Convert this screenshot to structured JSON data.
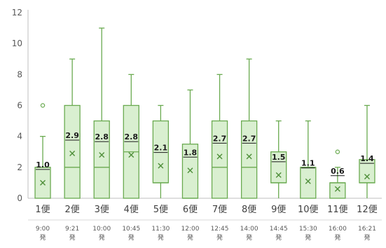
{
  "chart_data": {
    "type": "box",
    "title": "",
    "xlabel": "",
    "ylabel": "",
    "ylim": [
      0,
      12
    ],
    "yticks": [
      0,
      2,
      4,
      6,
      8,
      10,
      12
    ],
    "grid": false,
    "legend": "none",
    "colors": {
      "box_fill": "#d9efd0",
      "box_stroke": "#6aaa50",
      "whisker": "#6aaa50",
      "mean_marker": "#4f8f3a",
      "label_underline": "#1a1a1a",
      "axis": "#bfbfbf"
    },
    "categories": [
      {
        "label": "1便",
        "departure_time": "9:00",
        "departure_suffix": "発",
        "min": 0,
        "q1": 0,
        "median": 2,
        "q3": 2,
        "max": 4,
        "mean": 1.0,
        "mean_label": "1.0",
        "outliers": [
          6
        ]
      },
      {
        "label": "2便",
        "departure_time": "9:21",
        "departure_suffix": "発",
        "min": 0,
        "q1": 0,
        "median": 2,
        "q3": 6,
        "max": 9,
        "mean": 2.9,
        "mean_label": "2.9",
        "outliers": []
      },
      {
        "label": "3便",
        "departure_time": "10:00",
        "departure_suffix": "発",
        "min": 0,
        "q1": 0,
        "median": 2,
        "q3": 5,
        "max": 11,
        "mean": 2.8,
        "mean_label": "2.8",
        "outliers": []
      },
      {
        "label": "4便",
        "departure_time": "10:45",
        "departure_suffix": "発",
        "min": 0,
        "q1": 0,
        "median": 3,
        "q3": 6,
        "max": 8,
        "mean": 2.8,
        "mean_label": "2.8",
        "outliers": []
      },
      {
        "label": "5便",
        "departure_time": "11:30",
        "departure_suffix": "発",
        "min": 0,
        "q1": 1,
        "median": 1,
        "q3": 5,
        "max": 6,
        "mean": 2.1,
        "mean_label": "2.1",
        "outliers": []
      },
      {
        "label": "6便",
        "departure_time": "12:00",
        "departure_suffix": "発",
        "min": 0,
        "q1": 0,
        "median": 0,
        "q3": 3.5,
        "max": 7,
        "mean": 1.8,
        "mean_label": "1.8",
        "outliers": []
      },
      {
        "label": "7便",
        "departure_time": "12:45",
        "departure_suffix": "発",
        "min": 0,
        "q1": 0,
        "median": 2,
        "q3": 5,
        "max": 8,
        "mean": 2.7,
        "mean_label": "2.7",
        "outliers": []
      },
      {
        "label": "8便",
        "departure_time": "14:00",
        "departure_suffix": "発",
        "min": 0,
        "q1": 0,
        "median": 2,
        "q3": 5,
        "max": 9,
        "mean": 2.7,
        "mean_label": "2.7",
        "outliers": []
      },
      {
        "label": "9便",
        "departure_time": "14:45",
        "departure_suffix": "発",
        "min": 0,
        "q1": 1,
        "median": 1,
        "q3": 3,
        "max": 5,
        "mean": 1.5,
        "mean_label": "1.5",
        "outliers": []
      },
      {
        "label": "10便",
        "departure_time": "15:30",
        "departure_suffix": "発",
        "min": 0,
        "q1": 0,
        "median": 2,
        "q3": 2,
        "max": 5,
        "mean": 1.1,
        "mean_label": "1.1",
        "outliers": []
      },
      {
        "label": "11便",
        "departure_time": "16:00",
        "departure_suffix": "発",
        "min": 0,
        "q1": 0,
        "median": 1,
        "q3": 1,
        "max": 2,
        "mean": 0.6,
        "mean_label": "0.6",
        "outliers": [
          3
        ]
      },
      {
        "label": "12便",
        "departure_time": "16:21",
        "departure_suffix": "発",
        "min": 0,
        "q1": 1,
        "median": 1,
        "q3": 2.5,
        "max": 6,
        "mean": 1.4,
        "mean_label": "1.4",
        "outliers": []
      }
    ]
  }
}
